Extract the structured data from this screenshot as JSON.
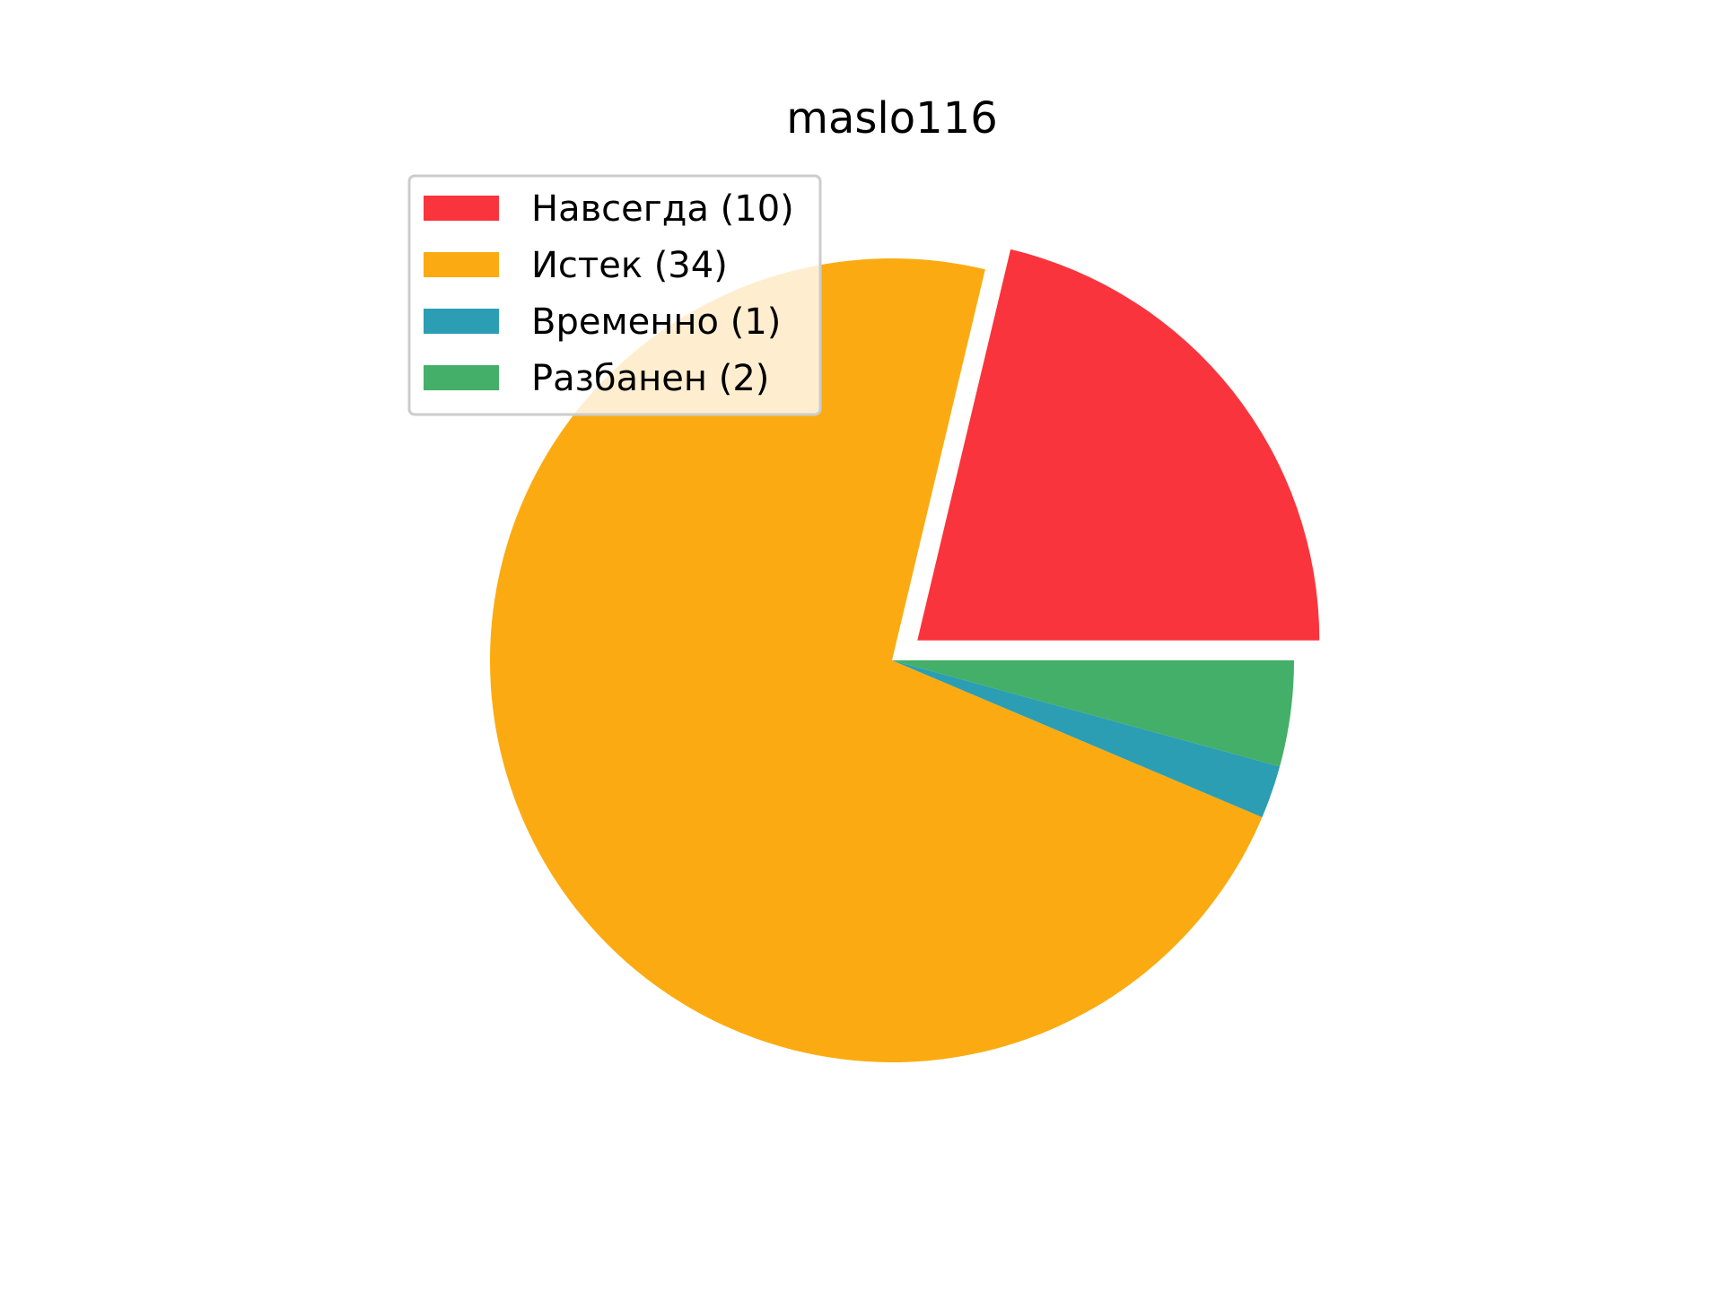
{
  "chart_data": {
    "type": "pie",
    "title": "maslo116",
    "categories": [
      "Навсегда",
      "Истек",
      "Временно",
      "Разбанен"
    ],
    "values": [
      10,
      34,
      1,
      2
    ],
    "legend_labels": [
      "Навсегда (10)",
      "Истек (34)",
      "Временно (1)",
      "Разбанен (2)"
    ],
    "colors": [
      "#fa343c",
      "#fbab11",
      "#2b9eb3",
      "#44af69"
    ],
    "exploded": [
      true,
      false,
      false,
      false
    ],
    "start_angle_deg": 0,
    "direction": "counterclockwise",
    "legend_position": "upper-left"
  }
}
